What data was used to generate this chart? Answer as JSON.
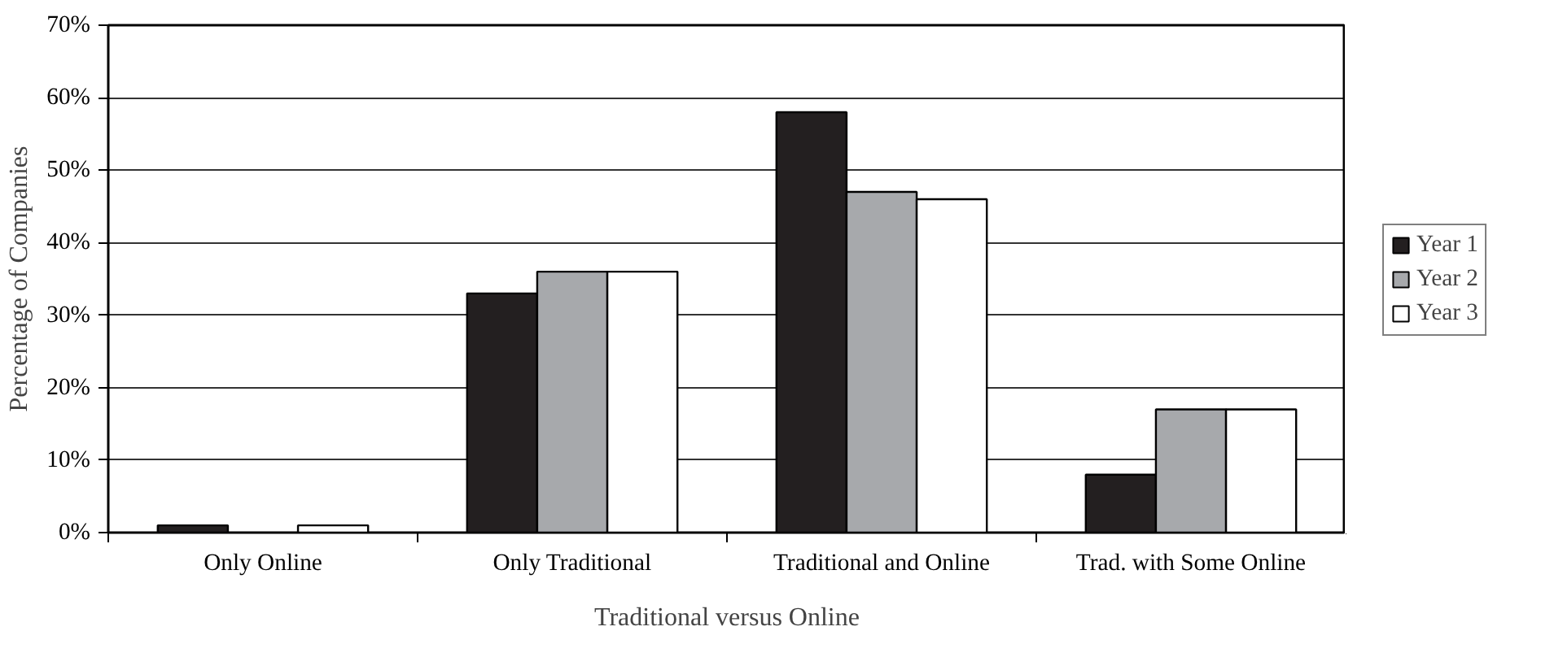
{
  "chart_data": {
    "type": "bar",
    "xlabel": "Traditional versus Online",
    "ylabel": "Percentage of Companies",
    "categories": [
      "Only Online",
      "Only Traditional",
      "Traditional and Online",
      "Trad. with Some Online"
    ],
    "series": [
      {
        "name": "Year 1",
        "color": "#231f20",
        "values": [
          1,
          33,
          58,
          8
        ]
      },
      {
        "name": "Year 2",
        "color": "#a7a9ac",
        "values": [
          0,
          36,
          47,
          17
        ]
      },
      {
        "name": "Year 3",
        "color": "#ffffff",
        "values": [
          1,
          36,
          46,
          17
        ]
      }
    ],
    "ylim": [
      0,
      70
    ],
    "yticks": [
      {
        "value": 0,
        "label": "0%"
      },
      {
        "value": 10,
        "label": "10%"
      },
      {
        "value": 20,
        "label": "20%"
      },
      {
        "value": 30,
        "label": "30%"
      },
      {
        "value": 40,
        "label": "40%"
      },
      {
        "value": 50,
        "label": "50%"
      },
      {
        "value": 60,
        "label": "60%"
      },
      {
        "value": 70,
        "label": "70%"
      }
    ],
    "grid": "y",
    "legend": "right"
  }
}
